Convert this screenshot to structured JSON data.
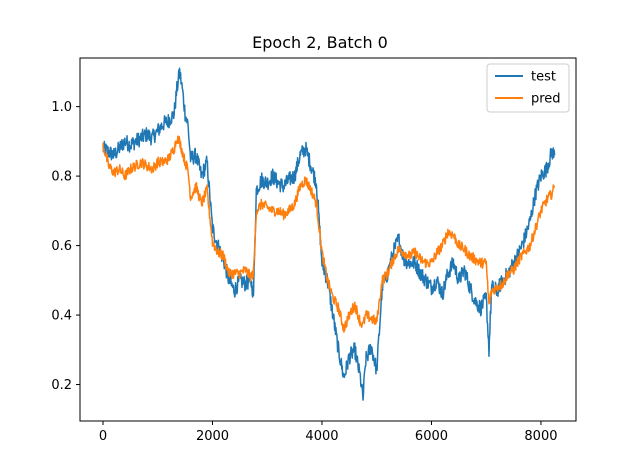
{
  "chart_data": {
    "type": "line",
    "title": "Epoch 2, Batch 0",
    "xlabel": "",
    "ylabel": "",
    "xlim": [
      -420,
      8640
    ],
    "ylim": [
      0.095,
      1.14
    ],
    "xticks": [
      0,
      2000,
      4000,
      6000,
      8000
    ],
    "yticks": [
      0.2,
      0.4,
      0.6,
      0.8,
      1.0
    ],
    "xtick_labels": [
      "0",
      "2000",
      "4000",
      "6000",
      "8000"
    ],
    "ytick_labels": [
      "0.2",
      "0.4",
      "0.6",
      "0.8",
      "1.0"
    ],
    "legend": {
      "position": "upper-right"
    },
    "grid": false,
    "series": [
      {
        "name": "test",
        "color": "#1f77b4",
        "x": [
          0,
          100,
          200,
          300,
          400,
          500,
          600,
          700,
          800,
          900,
          1000,
          1100,
          1200,
          1300,
          1350,
          1400,
          1450,
          1500,
          1550,
          1600,
          1700,
          1800,
          1900,
          2000,
          2100,
          2200,
          2300,
          2400,
          2500,
          2600,
          2700,
          2750,
          2800,
          2900,
          3000,
          3100,
          3200,
          3300,
          3400,
          3500,
          3600,
          3700,
          3800,
          3900,
          4000,
          4100,
          4200,
          4300,
          4400,
          4500,
          4600,
          4700,
          4750,
          4800,
          4900,
          5000,
          5100,
          5200,
          5300,
          5400,
          5500,
          5600,
          5700,
          5800,
          5900,
          6000,
          6100,
          6200,
          6300,
          6400,
          6500,
          6600,
          6700,
          6800,
          6900,
          7000,
          7050,
          7100,
          7200,
          7300,
          7400,
          7500,
          7600,
          7700,
          7800,
          7900,
          8000,
          8100,
          8200,
          8250
        ],
        "values": [
          0.88,
          0.87,
          0.86,
          0.88,
          0.9,
          0.89,
          0.9,
          0.91,
          0.92,
          0.91,
          0.93,
          0.95,
          0.96,
          0.98,
          1.05,
          1.1,
          1.05,
          0.98,
          0.95,
          0.85,
          0.86,
          0.8,
          0.84,
          0.65,
          0.6,
          0.56,
          0.5,
          0.47,
          0.5,
          0.49,
          0.5,
          0.46,
          0.76,
          0.79,
          0.78,
          0.8,
          0.78,
          0.77,
          0.79,
          0.8,
          0.86,
          0.88,
          0.83,
          0.78,
          0.55,
          0.5,
          0.4,
          0.3,
          0.22,
          0.28,
          0.3,
          0.22,
          0.16,
          0.27,
          0.31,
          0.24,
          0.48,
          0.52,
          0.58,
          0.62,
          0.56,
          0.55,
          0.55,
          0.52,
          0.5,
          0.48,
          0.5,
          0.46,
          0.52,
          0.55,
          0.5,
          0.53,
          0.48,
          0.44,
          0.42,
          0.45,
          0.3,
          0.48,
          0.47,
          0.5,
          0.52,
          0.55,
          0.58,
          0.62,
          0.67,
          0.75,
          0.8,
          0.82,
          0.87,
          0.86
        ]
      },
      {
        "name": "pred",
        "color": "#ff7f0e",
        "x": [
          0,
          100,
          200,
          300,
          400,
          500,
          600,
          700,
          800,
          900,
          1000,
          1100,
          1200,
          1300,
          1350,
          1400,
          1450,
          1500,
          1550,
          1600,
          1700,
          1800,
          1900,
          2000,
          2100,
          2200,
          2300,
          2400,
          2500,
          2600,
          2700,
          2750,
          2800,
          2900,
          3000,
          3100,
          3200,
          3300,
          3400,
          3500,
          3600,
          3700,
          3800,
          3900,
          4000,
          4100,
          4200,
          4300,
          4400,
          4500,
          4600,
          4700,
          4750,
          4800,
          4900,
          5000,
          5100,
          5200,
          5300,
          5400,
          5500,
          5600,
          5700,
          5800,
          5900,
          6000,
          6100,
          6200,
          6300,
          6400,
          6500,
          6600,
          6700,
          6800,
          6900,
          7000,
          7050,
          7100,
          7200,
          7300,
          7400,
          7500,
          7600,
          7700,
          7800,
          7900,
          8000,
          8100,
          8200,
          8250
        ],
        "values": [
          0.89,
          0.83,
          0.81,
          0.82,
          0.8,
          0.82,
          0.83,
          0.84,
          0.83,
          0.82,
          0.84,
          0.84,
          0.85,
          0.88,
          0.91,
          0.9,
          0.87,
          0.84,
          0.82,
          0.74,
          0.77,
          0.72,
          0.76,
          0.61,
          0.58,
          0.57,
          0.52,
          0.52,
          0.52,
          0.53,
          0.51,
          0.52,
          0.7,
          0.72,
          0.71,
          0.7,
          0.7,
          0.69,
          0.7,
          0.72,
          0.77,
          0.79,
          0.76,
          0.72,
          0.58,
          0.5,
          0.45,
          0.42,
          0.36,
          0.4,
          0.43,
          0.38,
          0.37,
          0.4,
          0.39,
          0.38,
          0.5,
          0.52,
          0.56,
          0.59,
          0.58,
          0.57,
          0.58,
          0.56,
          0.55,
          0.55,
          0.58,
          0.6,
          0.64,
          0.63,
          0.6,
          0.59,
          0.57,
          0.56,
          0.55,
          0.55,
          0.43,
          0.47,
          0.48,
          0.49,
          0.52,
          0.53,
          0.56,
          0.58,
          0.6,
          0.65,
          0.7,
          0.73,
          0.75,
          0.77
        ]
      }
    ]
  }
}
